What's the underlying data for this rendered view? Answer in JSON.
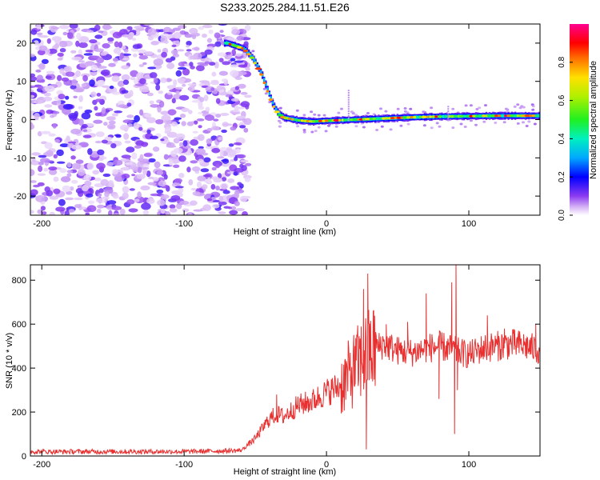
{
  "title": "S233.2025.284.11.51.E26",
  "chart_data": [
    {
      "type": "heatmap",
      "title": "S233.2025.284.11.51.E26",
      "xlabel": "Height of straight line (km)",
      "ylabel": "Frequency (Hz)",
      "xlim": [
        -208,
        150
      ],
      "ylim": [
        -25,
        25
      ],
      "xticks": [
        -200,
        -100,
        0,
        100
      ],
      "yticks": [
        -20,
        -10,
        0,
        10,
        20
      ],
      "colorbar": {
        "label": "Normalized spectral amplitude",
        "range": [
          0,
          1
        ],
        "ticks": [
          0,
          0.2,
          0.4,
          0.6,
          0.8
        ],
        "colormap": [
          "#ffffff",
          "#c080f0",
          "#6000f0",
          "#0000ff",
          "#00c0ff",
          "#00f080",
          "#40f000",
          "#e0f000",
          "#ff8000",
          "#ff0000",
          "#ff0090"
        ]
      },
      "description_track": {
        "x": [
          -70,
          -58,
          -52,
          -46,
          -42,
          -38,
          -34,
          -30,
          -20,
          -10,
          0,
          20,
          40,
          60,
          80,
          100,
          120,
          150
        ],
        "y": [
          20,
          18.5,
          16,
          12,
          8,
          4,
          1.5,
          0.5,
          -0.2,
          -0.5,
          -0.3,
          0.0,
          0.3,
          0.6,
          0.8,
          0.9,
          1.0,
          1.0
        ]
      },
      "noise_region_x": [
        -208,
        -55
      ]
    },
    {
      "type": "line",
      "xlabel": "Height of straight line (km)",
      "ylabel": "SNR (10 * v/v)",
      "xlim": [
        -208,
        150
      ],
      "ylim": [
        0,
        870
      ],
      "xticks": [
        -200,
        -100,
        0,
        100
      ],
      "yticks": [
        0,
        200,
        400,
        600,
        800
      ],
      "series": [
        {
          "name": "SNR",
          "color": "#e83030",
          "x": [
            -208,
            -150,
            -100,
            -60,
            -50,
            -40,
            -35,
            -30,
            -20,
            -10,
            0,
            10,
            15,
            20,
            25,
            30,
            35,
            40,
            50,
            60,
            70,
            80,
            90,
            100,
            110,
            120,
            130,
            140,
            150
          ],
          "y": [
            20,
            20,
            20,
            25,
            80,
            170,
            190,
            180,
            230,
            250,
            290,
            320,
            360,
            400,
            440,
            470,
            490,
            510,
            480,
            470,
            490,
            500,
            480,
            460,
            490,
            500,
            510,
            500,
            480
          ]
        }
      ],
      "spikes": [
        {
          "x": -35,
          "y": 280
        },
        {
          "x": 20,
          "y": 500
        },
        {
          "x": 26,
          "y": 760
        },
        {
          "x": 28,
          "y": 30
        },
        {
          "x": 29,
          "y": 830
        },
        {
          "x": 42,
          "y": 600
        },
        {
          "x": 57,
          "y": 610
        },
        {
          "x": 70,
          "y": 740
        },
        {
          "x": 79,
          "y": 260
        },
        {
          "x": 88,
          "y": 790
        },
        {
          "x": 90,
          "y": 100
        },
        {
          "x": 91,
          "y": 870
        },
        {
          "x": 92,
          "y": 300
        },
        {
          "x": 113,
          "y": 640
        },
        {
          "x": 125,
          "y": 580
        },
        {
          "x": 147,
          "y": 600
        }
      ]
    }
  ]
}
